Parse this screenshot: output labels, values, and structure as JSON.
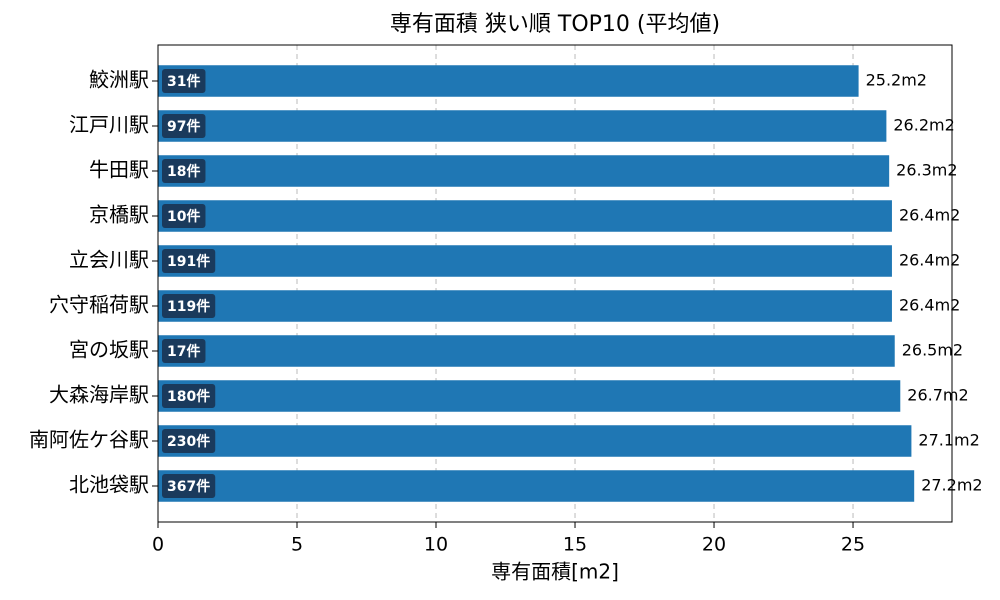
{
  "chart_data": {
    "type": "barh",
    "title": "専有面積 狭い順 TOP10 (平均値)",
    "xlabel": "専有面積[m2]",
    "categories": [
      "鮫洲駅",
      "江戸川駅",
      "牛田駅",
      "京橋駅",
      "立会川駅",
      "穴守稲荷駅",
      "宮の坂駅",
      "大森海岸駅",
      "南阿佐ケ谷駅",
      "北池袋駅"
    ],
    "values": [
      25.2,
      26.2,
      26.3,
      26.4,
      26.4,
      26.4,
      26.5,
      26.7,
      27.1,
      27.2
    ],
    "value_labels": [
      "25.2m2",
      "26.2m2",
      "26.3m2",
      "26.4m2",
      "26.4m2",
      "26.4m2",
      "26.5m2",
      "26.7m2",
      "27.1m2",
      "27.2m2"
    ],
    "bar_annotations": [
      "31件",
      "97件",
      "18件",
      "10件",
      "191件",
      "119件",
      "17件",
      "180件",
      "230件",
      "367件"
    ],
    "color": "#1f77b4",
    "annotation_color": "#1a3a5c",
    "xlim": [
      0,
      28.56
    ],
    "xticks": [
      0,
      5,
      10,
      15,
      20,
      25
    ],
    "grid": true
  }
}
